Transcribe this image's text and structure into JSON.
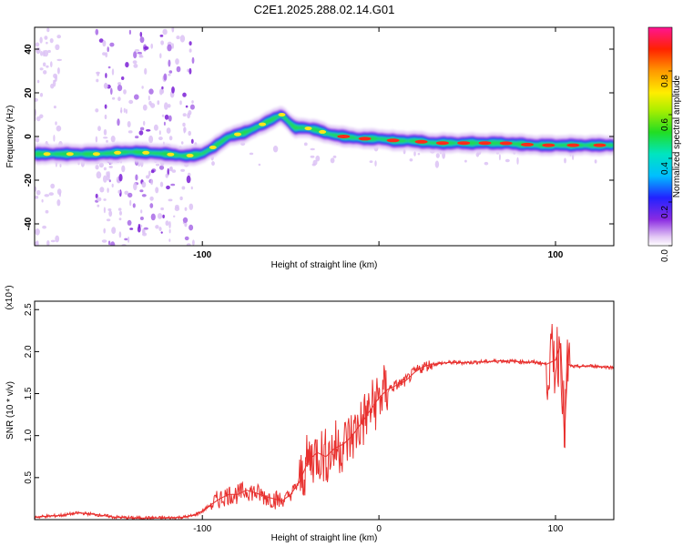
{
  "title": "C2E1.2025.288.02.14.G01",
  "colors": {
    "snr_line": "#e8302e",
    "axis": "#000000"
  },
  "chart_data": [
    {
      "type": "heatmap",
      "title": "C2E1.2025.288.02.14.G01",
      "xlabel": "Height of straight line (km)",
      "ylabel": "Frequency (Hz)",
      "xlim": [
        -195,
        133
      ],
      "ylim": [
        -50,
        50
      ],
      "x_ticks": [
        -100,
        0,
        100
      ],
      "x_tick_labels": [
        "-100",
        "",
        "100"
      ],
      "y_ticks": [
        -40,
        -20,
        0,
        20,
        40
      ],
      "y_tick_labels": [
        "-40",
        "-20",
        "0",
        "20",
        "40"
      ],
      "colorbar": {
        "label": "Normalized spectral amplitude",
        "range": [
          0,
          1
        ],
        "ticks": [
          0.0,
          0.2,
          0.4,
          0.6,
          0.8
        ],
        "tick_labels": [
          "0.0",
          "0.2",
          "0.4",
          "0.6",
          "0.8"
        ]
      },
      "ridge": {
        "name": "",
        "x": [
          -195,
          -180,
          -160,
          -140,
          -120,
          -110,
          -100,
          -92,
          -85,
          -75,
          -65,
          -55,
          -48,
          -42,
          -35,
          -28,
          -20,
          -10,
          0,
          10,
          20,
          30,
          50,
          70,
          90,
          100,
          110,
          133
        ],
        "frequency": [
          -8,
          -8,
          -8,
          -7,
          -8,
          -9,
          -8,
          -4,
          0,
          2,
          6,
          10,
          4,
          4,
          3,
          1,
          0,
          -1,
          -1,
          -2,
          -2,
          -3,
          -3,
          -3,
          -4,
          -4,
          -4,
          -4
        ]
      }
    },
    {
      "type": "line",
      "xlabel": "Height of straight line (km)",
      "ylabel": "SNR (10 * v/v)",
      "y_multiplier": "(x10⁴)",
      "xlim": [
        -195,
        133
      ],
      "ylim": [
        0,
        2.6
      ],
      "x_ticks": [
        -100,
        0,
        100
      ],
      "x_tick_labels": [
        "-100",
        "0",
        "100"
      ],
      "y_ticks": [
        0.5,
        1.0,
        1.5,
        2.0,
        2.5
      ],
      "y_tick_labels": [
        "0.5",
        "1.0",
        "1.5",
        "2.0",
        "2.5"
      ],
      "series": [
        {
          "name": "",
          "x": [
            -195,
            -180,
            -170,
            -160,
            -150,
            -140,
            -130,
            -120,
            -110,
            -105,
            -100,
            -95,
            -90,
            -85,
            -80,
            -75,
            -70,
            -65,
            -60,
            -55,
            -50,
            -45,
            -40,
            -35,
            -30,
            -25,
            -20,
            -15,
            -10,
            -5,
            0,
            5,
            10,
            15,
            20,
            25,
            30,
            40,
            50,
            60,
            70,
            80,
            90,
            95,
            100,
            103,
            105,
            107,
            110,
            120,
            133
          ],
          "y": [
            0.03,
            0.05,
            0.08,
            0.06,
            0.03,
            0.02,
            0.02,
            0.02,
            0.03,
            0.05,
            0.1,
            0.18,
            0.25,
            0.3,
            0.3,
            0.35,
            0.32,
            0.28,
            0.25,
            0.22,
            0.3,
            0.45,
            0.7,
            0.8,
            0.75,
            0.85,
            0.9,
            1.0,
            1.15,
            1.3,
            1.45,
            1.55,
            1.6,
            1.65,
            1.75,
            1.82,
            1.85,
            1.87,
            1.87,
            1.88,
            1.89,
            1.88,
            1.87,
            1.85,
            1.9,
            2.1,
            1.0,
            1.85,
            1.82,
            1.83,
            1.81
          ]
        }
      ]
    }
  ]
}
